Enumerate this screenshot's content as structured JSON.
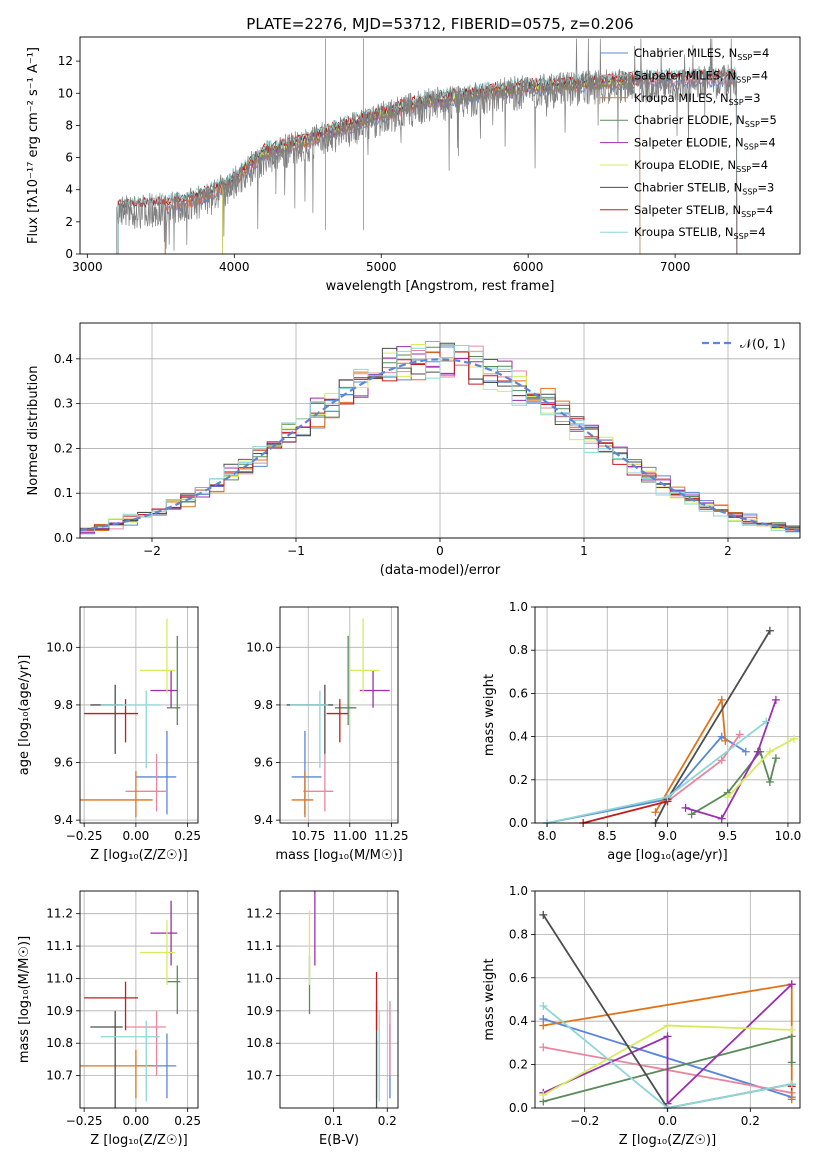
{
  "figure": {
    "title": "PLATE=2276, MJD=53712, FIBERID=0575, z=0.206"
  },
  "colors": {
    "Chabrier MILES": "#5b87d8",
    "Salpeter MILES": "#e8869f",
    "Kroupa MILES": "#e0741c",
    "Chabrier ELODIE": "#5a8a5a",
    "Salpeter ELODIE": "#9b2fae",
    "Kroupa ELODIE": "#d6ec5c",
    "Chabrier STELIB": "#4d4d4d",
    "Salpeter STELIB": "#c41b1b",
    "Kroupa STELIB": "#8fd6d6",
    "spectrum": "#808080",
    "normal": "#5b87d8"
  },
  "models": [
    {
      "name": "Chabrier MILES",
      "nssp": 4,
      "z": 0.15,
      "zerr": 0.15,
      "age": 9.55,
      "age_lo": 0.13,
      "age_hi": 0.16,
      "mass": 10.73,
      "mass_lo": 0.05,
      "mass_hi": 0.1,
      "ebv": 0.205,
      "w_age": [
        [
          8.0,
          0.0
        ],
        [
          9.0,
          0.11
        ],
        [
          9.45,
          0.4
        ],
        [
          9.65,
          0.33
        ]
      ],
      "w_z": [
        [
          -0.3,
          0.41
        ],
        [
          0.3,
          0.05
        ]
      ]
    },
    {
      "name": "Salpeter MILES",
      "nssp": 4,
      "z": 0.1,
      "zerr": 0.15,
      "age": 9.5,
      "age_lo": 0.07,
      "age_hi": 0.13,
      "mass": 10.85,
      "mass_lo": 0.1,
      "mass_hi": 0.05,
      "ebv": 0.205,
      "w_age": [
        [
          9.0,
          0.1
        ],
        [
          9.45,
          0.29
        ],
        [
          9.6,
          0.41
        ]
      ],
      "w_z": [
        [
          -0.3,
          0.28
        ],
        [
          0.3,
          0.07
        ]
      ]
    },
    {
      "name": "Kroupa MILES",
      "nssp": 3,
      "z": 0.0,
      "zerr": 0.27,
      "age": 9.47,
      "age_lo": 0.06,
      "age_hi": 0.1,
      "mass": 10.73,
      "mass_lo": 0.05,
      "mass_hi": 0.05,
      "ebv": 0.18,
      "w_age": [
        [
          8.9,
          0.05
        ],
        [
          9.45,
          0.57
        ],
        [
          9.48,
          0.38
        ]
      ],
      "w_z": [
        [
          -0.3,
          0.38
        ],
        [
          0.3,
          0.57
        ],
        [
          0.3,
          0.04
        ]
      ]
    },
    {
      "name": "Chabrier ELODIE",
      "nssp": 5,
      "z": 0.2,
      "zerr": 0.05,
      "age": 9.79,
      "age_lo": 0.06,
      "age_hi": 0.25,
      "mass": 10.99,
      "mass_lo": 0.05,
      "mass_hi": 0.05,
      "ebv": 0.055,
      "w_age": [
        [
          9.2,
          0.04
        ],
        [
          9.5,
          0.14
        ],
        [
          9.77,
          0.33
        ],
        [
          9.85,
          0.19
        ],
        [
          9.9,
          0.3
        ]
      ],
      "w_z": [
        [
          -0.3,
          0.03
        ],
        [
          0.3,
          0.33
        ],
        [
          0.3,
          0.21
        ]
      ]
    },
    {
      "name": "Salpeter ELODIE",
      "nssp": 4,
      "z": 0.17,
      "zerr": 0.1,
      "age": 9.85,
      "age_lo": 0.06,
      "age_hi": 0.07,
      "mass": 11.14,
      "mass_lo": 0.05,
      "mass_hi": 0.1,
      "ebv": 0.065,
      "w_age": [
        [
          9.15,
          0.07
        ],
        [
          9.45,
          0.02
        ],
        [
          9.75,
          0.33
        ],
        [
          9.9,
          0.57
        ]
      ],
      "w_z": [
        [
          -0.3,
          0.07
        ],
        [
          0.0,
          0.33
        ],
        [
          0.0,
          0.02
        ],
        [
          0.3,
          0.57
        ]
      ]
    },
    {
      "name": "Kroupa ELODIE",
      "nssp": 4,
      "z": 0.15,
      "zerr": 0.13,
      "age": 9.92,
      "age_lo": 0.08,
      "age_hi": 0.18,
      "mass": 11.08,
      "mass_lo": 0.05,
      "mass_hi": 0.1,
      "ebv": 0.055,
      "w_age": [
        [
          9.5,
          0.12
        ],
        [
          9.85,
          0.33
        ],
        [
          10.05,
          0.39
        ]
      ],
      "w_z": [
        [
          -0.3,
          0.06
        ],
        [
          0.0,
          0.38
        ],
        [
          0.3,
          0.36
        ]
      ]
    },
    {
      "name": "Chabrier STELIB",
      "nssp": 3,
      "z": -0.1,
      "zerr": 0.12,
      "age": 9.8,
      "age_lo": 0.17,
      "age_hi": 0.07,
      "mass": 10.85,
      "mass_lo": 0.2,
      "mass_hi": 0.05,
      "ebv": 0.18,
      "w_age": [
        [
          8.9,
          0.0
        ],
        [
          9.0,
          0.11
        ],
        [
          9.85,
          0.89
        ]
      ],
      "w_z": [
        [
          -0.3,
          0.89
        ],
        [
          0.0,
          0.0
        ],
        [
          0.3,
          0.11
        ]
      ]
    },
    {
      "name": "Salpeter STELIB",
      "nssp": 4,
      "z": -0.05,
      "zerr": 0.2,
      "age": 9.77,
      "age_lo": 0.1,
      "age_hi": 0.05,
      "mass": 10.94,
      "mass_lo": 0.05,
      "mass_hi": 0.05,
      "ebv": 0.18,
      "w_age": [
        [
          8.3,
          0.0
        ],
        [
          9.0,
          0.1
        ]
      ],
      "w_z": [
        [
          0.3,
          0.1
        ]
      ]
    },
    {
      "name": "Kroupa STELIB",
      "nssp": 4,
      "z": 0.05,
      "zerr": 0.22,
      "age": 9.8,
      "age_lo": 0.22,
      "age_hi": 0.05,
      "mass": 10.82,
      "mass_lo": 0.15,
      "mass_hi": 0.05,
      "ebv": 0.185,
      "w_age": [
        [
          8.0,
          0.0
        ],
        [
          9.0,
          0.12
        ],
        [
          9.82,
          0.47
        ]
      ],
      "w_z": [
        [
          -0.3,
          0.47
        ],
        [
          0.0,
          0.0
        ],
        [
          0.3,
          0.11
        ]
      ]
    }
  ],
  "chart_data": [
    {
      "type": "line",
      "title": "PLATE=2276, MJD=53712, FIBERID=0575, z=0.206",
      "xlabel": "wavelength [Angstrom, rest frame]",
      "ylabel": "Flux [fλ10⁻¹⁷ erg cm⁻² s⁻¹ A⁻¹]",
      "xlim": [
        2950,
        7850
      ],
      "ylim": [
        0,
        13.5
      ],
      "xticks": [
        3000,
        4000,
        5000,
        6000,
        7000
      ],
      "yticks": [
        0,
        2,
        4,
        6,
        8,
        10,
        12
      ],
      "grid": false,
      "legend": "upper right",
      "spectrum_envelope": {
        "x": [
          3200,
          3400,
          3700,
          3950,
          4200,
          4500,
          4800,
          5000,
          5300,
          5600,
          5900,
          6200,
          6500,
          6800,
          7100,
          7400
        ],
        "y": [
          2.5,
          2.7,
          3.0,
          4.0,
          6.0,
          6.8,
          7.8,
          8.4,
          9.2,
          9.6,
          10.0,
          10.2,
          10.4,
          10.5,
          10.6,
          10.7
        ]
      }
    },
    {
      "type": "bar",
      "xlabel": "(data-model)/error",
      "ylabel": "Normed distribution",
      "xlim": [
        -2.5,
        2.5
      ],
      "ylim": [
        0,
        0.48
      ],
      "xticks": [
        -2,
        -1,
        0,
        1,
        2
      ],
      "yticks": [
        0.0,
        0.1,
        0.2,
        0.3,
        0.4
      ],
      "grid": true,
      "legend_label": "𝒩(0, 1)",
      "legend": "upper right"
    },
    {
      "type": "scatter",
      "xlabel": "Z [log₁₀(Z/Z☉)]",
      "ylabel": "age  [log₁₀(age/yr)]",
      "xlim": [
        -0.27,
        0.3
      ],
      "ylim": [
        9.39,
        10.14
      ],
      "xticks": [
        -0.25,
        0.0,
        0.25
      ],
      "yticks": [
        9.4,
        9.6,
        9.8,
        10.0
      ],
      "grid": true
    },
    {
      "type": "scatter",
      "xlabel": "mass [log₁₀(M/M☉)]",
      "ylabel": "",
      "xlim": [
        10.58,
        11.29
      ],
      "ylim": [
        9.39,
        10.14
      ],
      "xticks": [
        10.75,
        11.0,
        11.25
      ],
      "yticks": [
        9.4,
        9.6,
        9.8,
        10.0
      ],
      "grid": true
    },
    {
      "type": "line",
      "xlabel": "age  [log₁₀(age/yr)]",
      "ylabel": "mass weight",
      "xlim": [
        7.9,
        10.1
      ],
      "ylim": [
        0,
        1.0
      ],
      "xticks": [
        8.0,
        8.5,
        9.0,
        9.5,
        10.0
      ],
      "yticks": [
        0.0,
        0.2,
        0.4,
        0.6,
        0.8,
        1.0
      ],
      "grid": true
    },
    {
      "type": "scatter",
      "xlabel": "Z [log₁₀(Z/Z☉)]",
      "ylabel": "mass [log₁₀(M/M☉)]",
      "xlim": [
        -0.27,
        0.3
      ],
      "ylim": [
        10.6,
        11.27
      ],
      "xticks": [
        -0.25,
        0.0,
        0.25
      ],
      "yticks": [
        10.7,
        10.8,
        10.9,
        11.0,
        11.1,
        11.2
      ],
      "grid": true
    },
    {
      "type": "scatter",
      "xlabel": "E(B-V)",
      "ylabel": "",
      "xlim": [
        0.0,
        0.22
      ],
      "ylim": [
        10.6,
        11.27
      ],
      "xticks": [
        0.1,
        0.2
      ],
      "yticks": [
        10.7,
        10.8,
        10.9,
        11.0,
        11.1,
        11.2
      ],
      "grid": true
    },
    {
      "type": "line",
      "xlabel": "Z [log₁₀(Z/Z☉)]",
      "ylabel": "mass weight",
      "xlim": [
        -0.32,
        0.32
      ],
      "ylim": [
        0,
        1.0
      ],
      "xticks": [
        -0.2,
        0.0,
        0.2
      ],
      "yticks": [
        0.0,
        0.2,
        0.4,
        0.6,
        0.8,
        1.0
      ],
      "grid": true
    }
  ]
}
